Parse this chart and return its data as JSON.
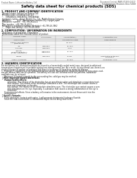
{
  "title": "Safety data sheet for chemical products (SDS)",
  "header_left": "Product Name: Lithium Ion Battery Cell",
  "header_right_line1": "Document Control: MAPLST1900-030CF",
  "header_right_line2": "Establishment / Revision: Dec.7.2018",
  "section1_title": "1. PRODUCT AND COMPANY IDENTIFICATION",
  "section1_lines": [
    " ・Product name: Lithium Ion Battery Cell",
    " ・Product code: Cylindrical type cell",
    "       (IHR18650U, IHR18650L, IHR18650A)",
    " ・Company name:   Sanyo Electric Co., Ltd., Mobile Energy Company",
    " ・Address:          2001  Kamitosazan, Sumoto-City, Hyogo, Japan",
    " ・Telephone number:  +81-799-26-4111",
    " ・Fax number:  +81-799-26-4123",
    " ・Emergency telephone number (Weekday) +81-799-26-3962",
    "       (Night and holiday) +81-799-26-4101"
  ],
  "section2_title": "2. COMPOSITION / INFORMATION ON INGREDIENTS",
  "section2_intro": " ・Substance or preparation: Preparation",
  "section2_table_title": " ・Information about the chemical nature of product:",
  "table_headers": [
    "Chemical name",
    "CAS number",
    "Concentration /\nConcentration range",
    "Classification and\nhazard labeling"
  ],
  "table_col1_subheader": "Several name",
  "table_rows": [
    [
      "Lithium cobalt tantalate\n(LiMnCoTiO2)",
      "-",
      "30~60%",
      "-"
    ],
    [
      "Iron",
      "7439-89-6",
      "10~20%",
      "-"
    ],
    [
      "Aluminum",
      "7429-90-5",
      "2~6%",
      "-"
    ],
    [
      "Graphite\n(Mixed in graphite-1)\n(Al-Mo in graphite-1)",
      "77502-42-5\n77502-44-0",
      "10~20%",
      "-"
    ],
    [
      "Copper",
      "7440-50-8",
      "5~15%",
      "Sensitization of the skin\ngroup No.2"
    ],
    [
      "Organic electrolyte",
      "-",
      "10~20%",
      "Inflammable liquid"
    ]
  ],
  "section3_title": "3. HAZARDS IDENTIFICATION",
  "section3_lines": [
    "For the battery cell, chemical materials are stored in a hermetically sealed metal case, designed to withstand",
    "temperatures experienced in portable applications during normal use. As a result, during normal use, there is no",
    "physical danger of ignition or explosion and there is no danger of hazardous materials leakage.",
    "     However, if exposed to a fire, added mechanical shocks, decomposed, struck electrically in many ways used,",
    "the gas release vent can be operated. The battery cell case will be breached of the patterns, hazardous",
    "materials may be released.",
    "     Moreover, if heated strongly by the surrounding fire, solid gas may be emitted."
  ],
  "section3_sub1": " ・ Most important hazard and effects:",
  "section3_human": "     Human health effects:",
  "section3_human_lines": [
    "          Inhalation: The release of the electrolyte has an anesthesia action and stimulates a respiratory tract.",
    "          Skin contact: The release of the electrolyte stimulates a skin. The electrolyte skin contact causes a",
    "          sore and stimulation on the skin.",
    "          Eye contact: The release of the electrolyte stimulates eyes. The electrolyte eye contact causes a sore",
    "          and stimulation on the eye. Especially, a substance that causes a strong inflammation of the eye is",
    "          contained."
  ],
  "section3_env_lines": [
    "     Environmental effects: Since a battery cell remains in the environment, do not throw out it into the",
    "     environment."
  ],
  "section3_specific": " ・ Specific hazards:",
  "section3_specific_lines": [
    "     If the electrolyte contacts with water, it will generate detrimental hydrogen fluoride.",
    "     Since the lead-environment is inflammable liquid, do not bring close to fire."
  ],
  "bg_color": "#ffffff",
  "text_color": "#1a1a1a",
  "header_color": "#555555",
  "title_color": "#000000",
  "section_color": "#000000",
  "table_border_color": "#888888",
  "table_header_bg": "#e8e8e8"
}
